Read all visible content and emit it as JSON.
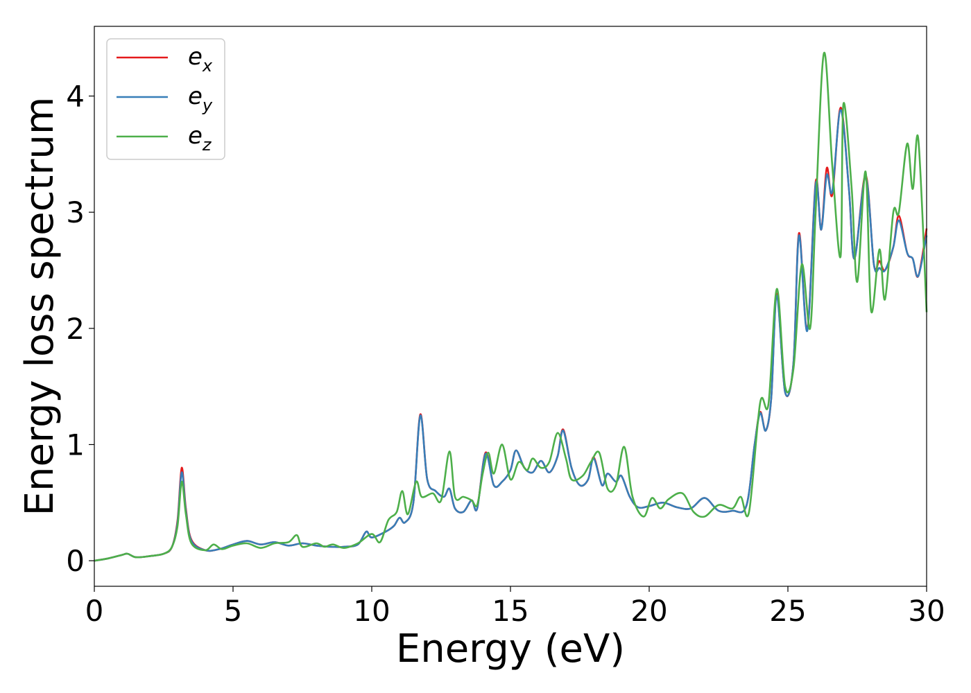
{
  "chart_data": {
    "type": "line",
    "xlabel": "Energy (eV)",
    "ylabel": "Energy loss spectrum",
    "xlim": [
      0,
      30
    ],
    "ylim": [
      -0.22,
      4.6
    ],
    "x_ticks": [
      0,
      5,
      10,
      15,
      20,
      25,
      30
    ],
    "y_ticks": [
      0,
      1,
      2,
      3,
      4
    ],
    "legend_placement": "top-left",
    "grid": false,
    "series": [
      {
        "name": "x",
        "legend_base": "e",
        "legend_sub": "x",
        "color": "#e41a1c",
        "points": [
          [
            0,
            0
          ],
          [
            0.5,
            0.02
          ],
          [
            1,
            0.05
          ],
          [
            1.2,
            0.06
          ],
          [
            1.5,
            0.03
          ],
          [
            2,
            0.04
          ],
          [
            2.5,
            0.06
          ],
          [
            2.8,
            0.12
          ],
          [
            3.0,
            0.35
          ],
          [
            3.15,
            0.8
          ],
          [
            3.3,
            0.45
          ],
          [
            3.5,
            0.18
          ],
          [
            4,
            0.09
          ],
          [
            4.5,
            0.1
          ],
          [
            5,
            0.14
          ],
          [
            5.5,
            0.17
          ],
          [
            6,
            0.14
          ],
          [
            6.5,
            0.16
          ],
          [
            7,
            0.13
          ],
          [
            7.5,
            0.15
          ],
          [
            8,
            0.13
          ],
          [
            8.5,
            0.12
          ],
          [
            9,
            0.12
          ],
          [
            9.5,
            0.14
          ],
          [
            9.8,
            0.25
          ],
          [
            10,
            0.2
          ],
          [
            10.5,
            0.25
          ],
          [
            10.8,
            0.3
          ],
          [
            11,
            0.37
          ],
          [
            11.2,
            0.33
          ],
          [
            11.5,
            0.5
          ],
          [
            11.75,
            1.26
          ],
          [
            12.0,
            0.7
          ],
          [
            12.3,
            0.6
          ],
          [
            12.6,
            0.55
          ],
          [
            12.8,
            0.62
          ],
          [
            13,
            0.45
          ],
          [
            13.3,
            0.42
          ],
          [
            13.6,
            0.52
          ],
          [
            13.8,
            0.45
          ],
          [
            14.1,
            0.93
          ],
          [
            14.4,
            0.65
          ],
          [
            14.7,
            0.68
          ],
          [
            15,
            0.78
          ],
          [
            15.2,
            0.95
          ],
          [
            15.5,
            0.8
          ],
          [
            15.8,
            0.76
          ],
          [
            16.1,
            0.86
          ],
          [
            16.4,
            0.76
          ],
          [
            16.7,
            0.9
          ],
          [
            16.9,
            1.13
          ],
          [
            17.2,
            0.8
          ],
          [
            17.5,
            0.65
          ],
          [
            17.8,
            0.7
          ],
          [
            18,
            0.89
          ],
          [
            18.3,
            0.65
          ],
          [
            18.5,
            0.75
          ],
          [
            18.8,
            0.68
          ],
          [
            19,
            0.73
          ],
          [
            19.3,
            0.55
          ],
          [
            19.6,
            0.46
          ],
          [
            20,
            0.47
          ],
          [
            20.5,
            0.5
          ],
          [
            21,
            0.46
          ],
          [
            21.5,
            0.45
          ],
          [
            22,
            0.54
          ],
          [
            22.5,
            0.43
          ],
          [
            23,
            0.43
          ],
          [
            23.5,
            0.47
          ],
          [
            23.8,
            1.0
          ],
          [
            24,
            1.28
          ],
          [
            24.2,
            1.12
          ],
          [
            24.4,
            1.4
          ],
          [
            24.6,
            2.3
          ],
          [
            24.9,
            1.45
          ],
          [
            25.2,
            1.7
          ],
          [
            25.4,
            2.82
          ],
          [
            25.7,
            1.99
          ],
          [
            26,
            3.26
          ],
          [
            26.2,
            2.85
          ],
          [
            26.4,
            3.38
          ],
          [
            26.6,
            3.15
          ],
          [
            26.9,
            3.9
          ],
          [
            27.2,
            3.2
          ],
          [
            27.4,
            2.6
          ],
          [
            27.8,
            3.32
          ],
          [
            28.1,
            2.55
          ],
          [
            28.3,
            2.58
          ],
          [
            28.5,
            2.5
          ],
          [
            28.8,
            2.7
          ],
          [
            29,
            2.97
          ],
          [
            29.3,
            2.65
          ],
          [
            29.5,
            2.6
          ],
          [
            29.7,
            2.45
          ],
          [
            30,
            2.86
          ]
        ]
      },
      {
        "name": "y",
        "legend_base": "e",
        "legend_sub": "y",
        "color": "#377eb8",
        "points": [
          [
            0,
            0
          ],
          [
            0.5,
            0.02
          ],
          [
            1,
            0.05
          ],
          [
            1.2,
            0.06
          ],
          [
            1.5,
            0.03
          ],
          [
            2,
            0.04
          ],
          [
            2.5,
            0.06
          ],
          [
            2.8,
            0.12
          ],
          [
            3.0,
            0.33
          ],
          [
            3.15,
            0.76
          ],
          [
            3.3,
            0.43
          ],
          [
            3.5,
            0.17
          ],
          [
            4,
            0.09
          ],
          [
            4.5,
            0.1
          ],
          [
            5,
            0.14
          ],
          [
            5.5,
            0.17
          ],
          [
            6,
            0.14
          ],
          [
            6.5,
            0.16
          ],
          [
            7,
            0.13
          ],
          [
            7.5,
            0.15
          ],
          [
            8,
            0.13
          ],
          [
            8.5,
            0.12
          ],
          [
            9,
            0.12
          ],
          [
            9.5,
            0.14
          ],
          [
            9.8,
            0.25
          ],
          [
            10,
            0.2
          ],
          [
            10.5,
            0.25
          ],
          [
            10.8,
            0.3
          ],
          [
            11,
            0.37
          ],
          [
            11.2,
            0.33
          ],
          [
            11.5,
            0.5
          ],
          [
            11.75,
            1.25
          ],
          [
            12.0,
            0.7
          ],
          [
            12.3,
            0.6
          ],
          [
            12.6,
            0.55
          ],
          [
            12.8,
            0.62
          ],
          [
            13,
            0.45
          ],
          [
            13.3,
            0.42
          ],
          [
            13.6,
            0.52
          ],
          [
            13.8,
            0.45
          ],
          [
            14.1,
            0.92
          ],
          [
            14.4,
            0.65
          ],
          [
            14.7,
            0.68
          ],
          [
            15,
            0.78
          ],
          [
            15.2,
            0.95
          ],
          [
            15.5,
            0.8
          ],
          [
            15.8,
            0.76
          ],
          [
            16.1,
            0.86
          ],
          [
            16.4,
            0.76
          ],
          [
            16.7,
            0.9
          ],
          [
            16.9,
            1.12
          ],
          [
            17.2,
            0.8
          ],
          [
            17.5,
            0.65
          ],
          [
            17.8,
            0.7
          ],
          [
            18,
            0.88
          ],
          [
            18.3,
            0.65
          ],
          [
            18.5,
            0.75
          ],
          [
            18.8,
            0.68
          ],
          [
            19,
            0.73
          ],
          [
            19.3,
            0.55
          ],
          [
            19.6,
            0.46
          ],
          [
            20,
            0.47
          ],
          [
            20.5,
            0.5
          ],
          [
            21,
            0.46
          ],
          [
            21.5,
            0.45
          ],
          [
            22,
            0.54
          ],
          [
            22.5,
            0.43
          ],
          [
            23,
            0.43
          ],
          [
            23.5,
            0.47
          ],
          [
            23.8,
            1.0
          ],
          [
            24,
            1.27
          ],
          [
            24.2,
            1.12
          ],
          [
            24.4,
            1.4
          ],
          [
            24.6,
            2.28
          ],
          [
            24.9,
            1.45
          ],
          [
            25.2,
            1.7
          ],
          [
            25.4,
            2.8
          ],
          [
            25.7,
            1.98
          ],
          [
            26,
            3.24
          ],
          [
            26.2,
            2.85
          ],
          [
            26.4,
            3.32
          ],
          [
            26.6,
            3.18
          ],
          [
            26.9,
            3.88
          ],
          [
            27.2,
            3.2
          ],
          [
            27.4,
            2.6
          ],
          [
            27.8,
            3.3
          ],
          [
            28.1,
            2.55
          ],
          [
            28.3,
            2.52
          ],
          [
            28.5,
            2.5
          ],
          [
            28.8,
            2.7
          ],
          [
            29,
            2.93
          ],
          [
            29.3,
            2.65
          ],
          [
            29.5,
            2.6
          ],
          [
            29.7,
            2.45
          ],
          [
            30,
            2.8
          ]
        ]
      },
      {
        "name": "z",
        "legend_base": "e",
        "legend_sub": "z",
        "color": "#4daf4a",
        "points": [
          [
            0,
            0
          ],
          [
            0.5,
            0.02
          ],
          [
            1,
            0.05
          ],
          [
            1.2,
            0.06
          ],
          [
            1.5,
            0.03
          ],
          [
            2,
            0.04
          ],
          [
            2.5,
            0.06
          ],
          [
            2.8,
            0.12
          ],
          [
            3.0,
            0.3
          ],
          [
            3.15,
            0.68
          ],
          [
            3.3,
            0.4
          ],
          [
            3.5,
            0.15
          ],
          [
            4,
            0.09
          ],
          [
            4.3,
            0.14
          ],
          [
            4.6,
            0.1
          ],
          [
            5,
            0.13
          ],
          [
            5.5,
            0.15
          ],
          [
            6,
            0.11
          ],
          [
            6.5,
            0.15
          ],
          [
            7,
            0.16
          ],
          [
            7.3,
            0.22
          ],
          [
            7.5,
            0.12
          ],
          [
            8,
            0.15
          ],
          [
            8.3,
            0.12
          ],
          [
            8.6,
            0.14
          ],
          [
            9,
            0.11
          ],
          [
            9.5,
            0.15
          ],
          [
            10,
            0.23
          ],
          [
            10.3,
            0.16
          ],
          [
            10.6,
            0.35
          ],
          [
            10.9,
            0.42
          ],
          [
            11.1,
            0.6
          ],
          [
            11.3,
            0.4
          ],
          [
            11.6,
            0.68
          ],
          [
            11.8,
            0.55
          ],
          [
            12.2,
            0.58
          ],
          [
            12.5,
            0.52
          ],
          [
            12.8,
            0.94
          ],
          [
            13,
            0.55
          ],
          [
            13.3,
            0.55
          ],
          [
            13.6,
            0.52
          ],
          [
            13.8,
            0.48
          ],
          [
            14,
            0.75
          ],
          [
            14.2,
            0.93
          ],
          [
            14.4,
            0.75
          ],
          [
            14.7,
            1.0
          ],
          [
            15,
            0.7
          ],
          [
            15.3,
            0.85
          ],
          [
            15.6,
            0.78
          ],
          [
            15.8,
            0.88
          ],
          [
            16.1,
            0.8
          ],
          [
            16.4,
            0.85
          ],
          [
            16.7,
            1.1
          ],
          [
            17.0,
            0.88
          ],
          [
            17.2,
            0.7
          ],
          [
            17.6,
            0.73
          ],
          [
            17.9,
            0.85
          ],
          [
            18.2,
            0.93
          ],
          [
            18.5,
            0.62
          ],
          [
            18.8,
            0.65
          ],
          [
            19.1,
            0.98
          ],
          [
            19.4,
            0.55
          ],
          [
            19.8,
            0.38
          ],
          [
            20.1,
            0.54
          ],
          [
            20.4,
            0.45
          ],
          [
            20.7,
            0.53
          ],
          [
            21.2,
            0.58
          ],
          [
            21.6,
            0.42
          ],
          [
            22,
            0.38
          ],
          [
            22.5,
            0.48
          ],
          [
            23,
            0.45
          ],
          [
            23.3,
            0.55
          ],
          [
            23.6,
            0.42
          ],
          [
            24,
            1.36
          ],
          [
            24.3,
            1.35
          ],
          [
            24.6,
            2.34
          ],
          [
            24.9,
            1.5
          ],
          [
            25.2,
            1.65
          ],
          [
            25.5,
            2.55
          ],
          [
            25.8,
            2.0
          ],
          [
            26.0,
            3.0
          ],
          [
            26.3,
            4.37
          ],
          [
            26.6,
            3.4
          ],
          [
            26.9,
            2.62
          ],
          [
            27.0,
            3.93
          ],
          [
            27.3,
            3.2
          ],
          [
            27.5,
            2.4
          ],
          [
            27.8,
            3.35
          ],
          [
            28.0,
            2.15
          ],
          [
            28.3,
            2.68
          ],
          [
            28.5,
            2.25
          ],
          [
            28.8,
            3.0
          ],
          [
            29,
            3.0
          ],
          [
            29.3,
            3.59
          ],
          [
            29.5,
            3.2
          ],
          [
            29.7,
            3.63
          ],
          [
            30,
            2.14
          ]
        ]
      }
    ]
  }
}
